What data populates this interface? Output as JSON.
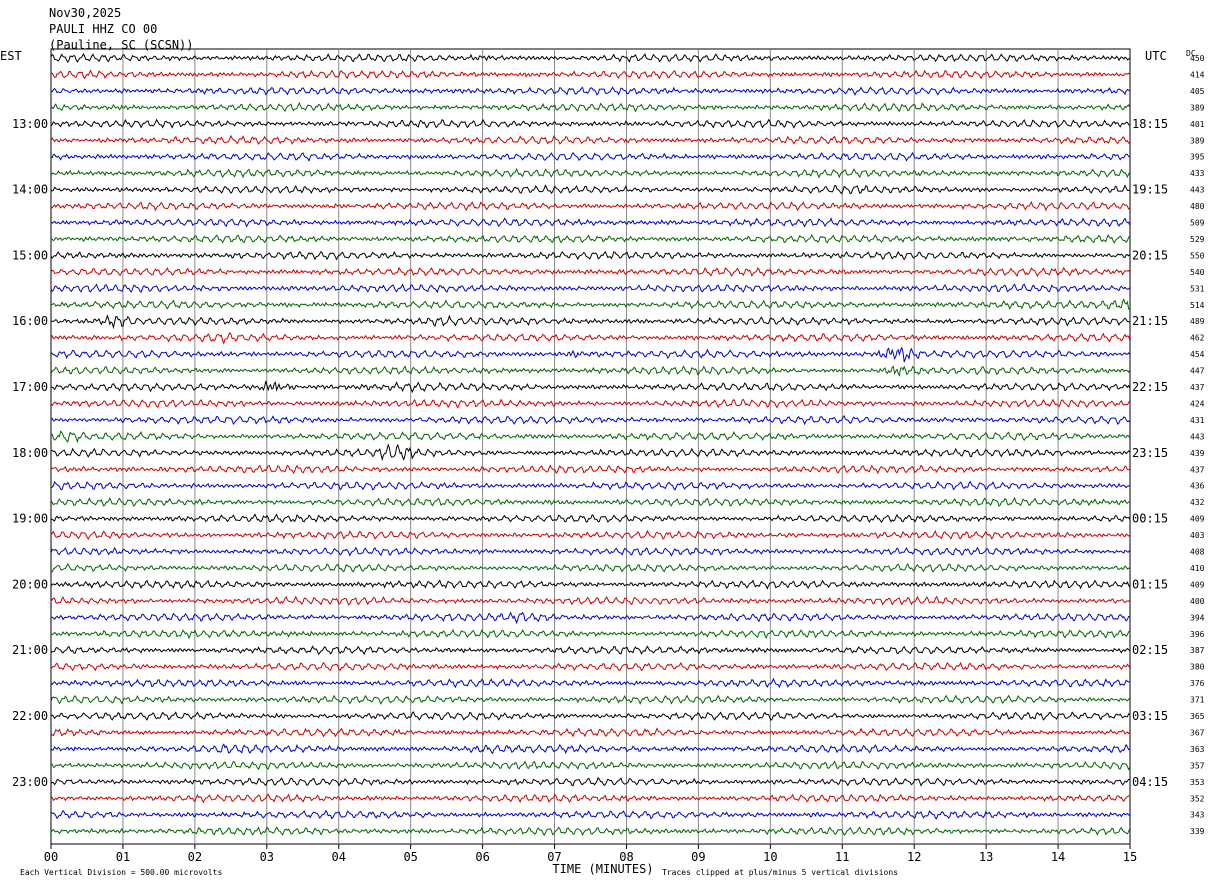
{
  "header": {
    "date": "Nov30,2025",
    "station": "PAULI HHZ CO 00",
    "location": "(Pauline, SC (SCSN))"
  },
  "chart_data": {
    "type": "line",
    "subtype": "helicorder",
    "left_zone_label": "EST",
    "right_zone_label": "UTC",
    "dc_label": "DC",
    "xlabel": "TIME (MINUTES)",
    "xlim": [
      0,
      15
    ],
    "x_ticks": [
      "00",
      "01",
      "02",
      "03",
      "04",
      "05",
      "06",
      "07",
      "08",
      "09",
      "10",
      "11",
      "12",
      "13",
      "14",
      "15"
    ],
    "minutes_per_line": 15,
    "trace_colors": [
      "#000000",
      "#cc0000",
      "#0000cc",
      "#006600"
    ],
    "left_hour_labels": [
      "13:00",
      "14:00",
      "15:00",
      "16:00",
      "17:00",
      "18:00",
      "19:00",
      "20:00",
      "21:00",
      "22:00",
      "23:00"
    ],
    "right_hour_labels": [
      "18:15",
      "19:15",
      "20:15",
      "21:15",
      "22:15",
      "23:15",
      "00:15",
      "01:15",
      "02:15",
      "03:15",
      "04:15"
    ],
    "dc_offsets": [
      450,
      414,
      405,
      389,
      401,
      389,
      395,
      433,
      443,
      480,
      509,
      529,
      550,
      540,
      531,
      514,
      489,
      462,
      454,
      447,
      437,
      424,
      431,
      443,
      439,
      437,
      436,
      432,
      409,
      403,
      408,
      410,
      409,
      400,
      394,
      396,
      387,
      380,
      376,
      371,
      365,
      367,
      363,
      357,
      353,
      352,
      343,
      339
    ],
    "footer_left": "Each Vertical Division =  500.00 microvolts",
    "footer_right": "Traces clipped at plus/minus 5 vertical divisions",
    "events": [
      {
        "line": 0,
        "minute": 6.0,
        "amp": 1.6
      },
      {
        "line": 8,
        "minute": 11.1,
        "amp": 1.5
      },
      {
        "line": 15,
        "minute": 14.9,
        "amp": 2.2
      },
      {
        "line": 16,
        "minute": 0.9,
        "amp": 2.2
      },
      {
        "line": 16,
        "minute": 5.4,
        "amp": 1.6
      },
      {
        "line": 17,
        "minute": 2.4,
        "amp": 1.4
      },
      {
        "line": 18,
        "minute": 7.4,
        "amp": 1.8
      },
      {
        "line": 18,
        "minute": 11.8,
        "amp": 4.0
      },
      {
        "line": 19,
        "minute": 11.8,
        "amp": 2.6
      },
      {
        "line": 20,
        "minute": 3.1,
        "amp": 3.0
      },
      {
        "line": 20,
        "minute": 5.0,
        "amp": 1.6
      },
      {
        "line": 23,
        "minute": 0.2,
        "amp": 1.8
      },
      {
        "line": 24,
        "minute": 4.8,
        "amp": 2.6
      },
      {
        "line": 34,
        "minute": 6.6,
        "amp": 1.8
      },
      {
        "line": 42,
        "minute": 2.5,
        "amp": 1.5
      },
      {
        "line": 42,
        "minute": 6.1,
        "amp": 1.7
      }
    ]
  }
}
